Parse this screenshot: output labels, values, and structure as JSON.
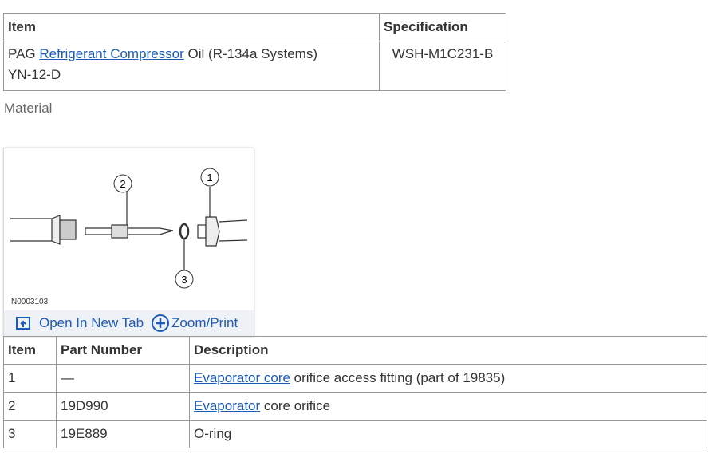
{
  "spec_table": {
    "headers": [
      "Item",
      "Specification"
    ],
    "row": {
      "prefix": "PAG ",
      "link": "Refrigerant Compressor",
      "suffix": " Oil (R-134a Systems)",
      "line2": "YN-12-D",
      "spec": "WSH-M1C231-B"
    }
  },
  "material_label": "Material",
  "figure": {
    "id": "N0003103",
    "callouts": [
      "1",
      "2",
      "3"
    ],
    "open_tab": "Open In New Tab",
    "zoom": "Zoom/Print"
  },
  "parts_table": {
    "headers": [
      "Item",
      "Part Number",
      "Description"
    ],
    "rows": [
      {
        "item": "1",
        "part": "—",
        "link": "Evaporator core",
        "desc": " orifice access fitting (part of 19835)"
      },
      {
        "item": "2",
        "part": "19D990",
        "link": "Evaporator",
        "desc": " core orifice"
      },
      {
        "item": "3",
        "part": "19E889",
        "link": "",
        "desc": "O-ring"
      }
    ]
  },
  "colors": {
    "link": "#1a5bb5",
    "border": "#999999"
  }
}
